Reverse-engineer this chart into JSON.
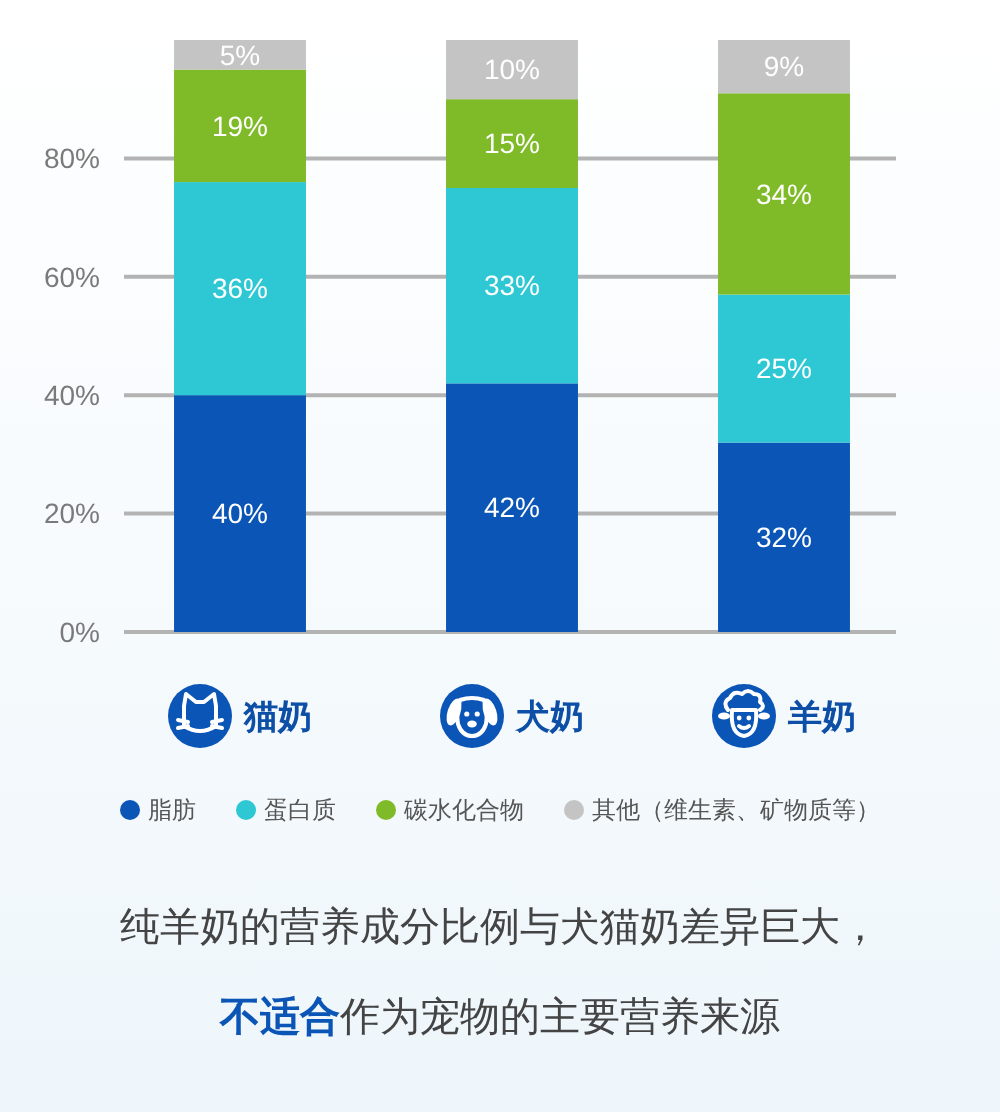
{
  "chart_data": {
    "type": "bar",
    "stacked": true,
    "categories": [
      "猫奶",
      "犬奶",
      "羊奶"
    ],
    "series": [
      {
        "name": "脂肪",
        "color": "#0a55b5",
        "values": [
          40,
          42,
          32
        ],
        "value_labels": [
          "40%",
          "42%",
          "32%"
        ]
      },
      {
        "name": "蛋白质",
        "color": "#2ec8d4",
        "values": [
          36,
          33,
          25
        ],
        "value_labels": [
          "36%",
          "33%",
          "25%"
        ]
      },
      {
        "name": "碳水化合物",
        "color": "#7fbb28",
        "values": [
          19,
          15,
          34
        ],
        "value_labels": [
          "19%",
          "15%",
          "34%"
        ]
      },
      {
        "name": "其他（维生素、矿物质等）",
        "color": "#c4c4c4",
        "values": [
          5,
          10,
          9
        ],
        "value_labels": [
          "5%",
          "10%",
          "9%"
        ]
      }
    ],
    "ylim": [
      0,
      100
    ],
    "yticks": [
      {
        "value": 0,
        "label": "0%"
      },
      {
        "value": 20,
        "label": "20%"
      },
      {
        "value": 40,
        "label": "40%"
      },
      {
        "value": 60,
        "label": "60%"
      },
      {
        "value": 80,
        "label": "80%"
      }
    ],
    "grid": "y",
    "legend": "bottom",
    "annotations": [
      "纯羊奶的营养成分比例与犬猫奶差异巨大，",
      "不适合",
      "作为宠物的主要营养来源"
    ]
  }
}
